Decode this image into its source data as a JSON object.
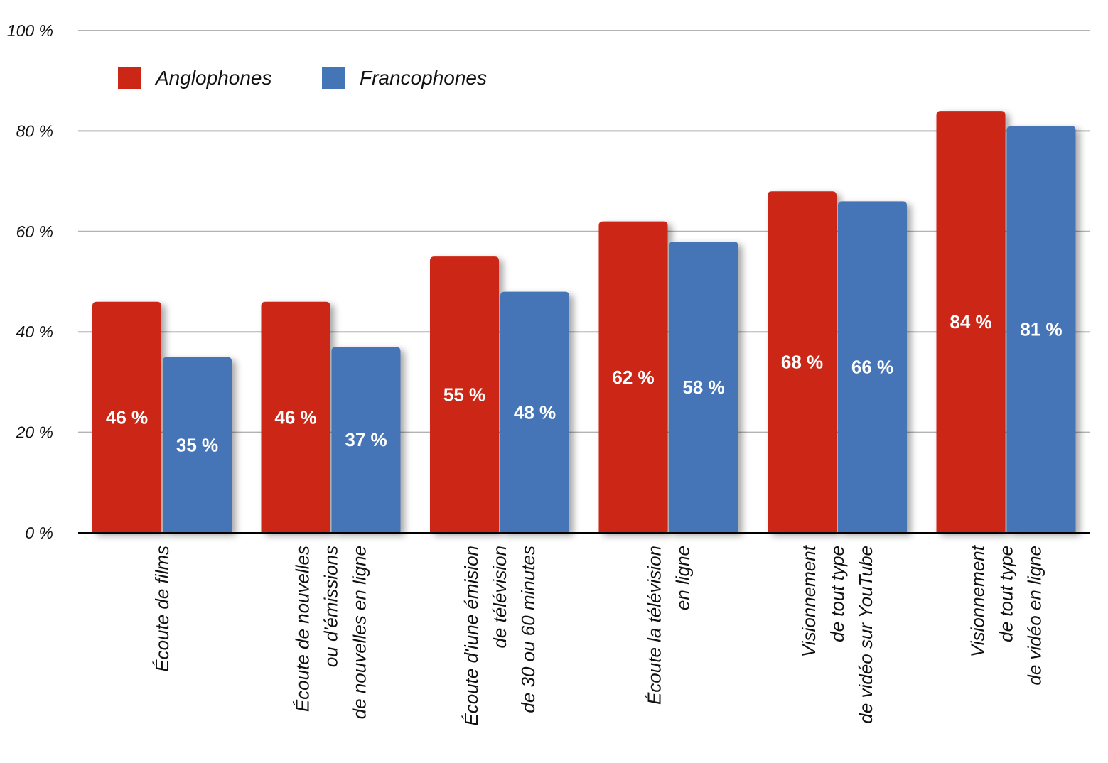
{
  "chart_data": {
    "type": "bar",
    "categories": [
      [
        "Écoute de films"
      ],
      [
        "Écoute de nouvelles",
        "ou d'émissions",
        "de nouvelles en ligne"
      ],
      [
        "Écoute d'iune émision",
        "de télévision",
        "de 30 ou 60 minutes"
      ],
      [
        "Écoute la télévision",
        "en ligne"
      ],
      [
        "Visionnement",
        "de tout type",
        "de vidéo sur YouTube"
      ],
      [
        "Visionnement",
        "de tout type",
        "de vidéo en ligne"
      ]
    ],
    "series": [
      {
        "name": "Anglophones",
        "color": "#cc2616",
        "values": [
          46,
          46,
          55,
          62,
          68,
          84
        ],
        "labels": [
          "46 %",
          "46 %",
          "55 %",
          "62 %",
          "68 %",
          "84 %"
        ]
      },
      {
        "name": "Francophones",
        "color": "#4475b7",
        "values": [
          35,
          37,
          48,
          58,
          66,
          81
        ],
        "labels": [
          "35 %",
          "37 %",
          "48 %",
          "58 %",
          "66 %",
          "81 %"
        ]
      }
    ],
    "yticks": [
      0,
      20,
      40,
      60,
      80,
      100
    ],
    "ytick_labels": [
      "0 %",
      "20 %",
      "40 %",
      "60 %",
      "80 %",
      "100 %"
    ],
    "ylim": [
      0,
      100
    ],
    "title": "",
    "xlabel": "",
    "ylabel": "",
    "grid": true,
    "legend_position": "top-left",
    "gridline_color": "#b3b3b3",
    "axis_color": "#000000"
  }
}
